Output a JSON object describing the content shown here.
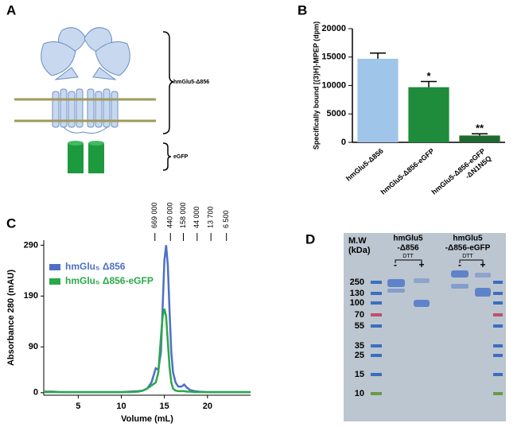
{
  "panel_labels": [
    "A",
    "B",
    "C",
    "D"
  ],
  "diagram": {
    "construct_label": "hmGlu5-Δ856",
    "tag_label": "eGFP"
  },
  "chart_data": [
    {
      "type": "bar",
      "y_label": "Specifically bound [(3)H]-MPEP (dpm)",
      "categories": [
        [
          "hmGlu5-Δ856"
        ],
        [
          "hmGlu5-Δ856-eGFP"
        ],
        [
          "hmGlu5-Δ856-eGFP",
          "-ΔN1N5Q"
        ]
      ],
      "values": [
        14700,
        9700,
        1200
      ],
      "errors": [
        1000,
        1000,
        300
      ],
      "colors": [
        "#9fc5e8",
        "#1e8c3a",
        "#1f6a30"
      ],
      "annotations": [
        null,
        "*",
        "**"
      ],
      "ylim": [
        0,
        20000
      ],
      "yticks": [
        0,
        5000,
        10000,
        15000,
        20000
      ]
    },
    {
      "type": "line",
      "x_label": "Volume (mL)",
      "y_label": "Absorbance 280 (mAU)",
      "x": [
        1,
        2,
        3,
        4,
        5,
        6,
        7,
        8,
        9,
        10,
        11,
        12,
        12.5,
        13,
        13.5,
        14,
        14.3,
        14.6,
        14.8,
        15,
        15.2,
        15.4,
        15.6,
        15.8,
        16,
        16.3,
        16.6,
        17,
        17.3,
        17.6,
        18,
        18.5,
        19,
        20,
        21,
        22,
        23,
        24,
        25
      ],
      "series": [
        {
          "name": "hmGlu₅ Δ856",
          "color": "#4f6fc4",
          "values": [
            2,
            2,
            1,
            1,
            1,
            1,
            1,
            1,
            1,
            1,
            2,
            3,
            4,
            8,
            20,
            48,
            45,
            80,
            170,
            260,
            290,
            250,
            160,
            80,
            40,
            20,
            12,
            12,
            16,
            10,
            5,
            3,
            2,
            1,
            1,
            1,
            1,
            1,
            1
          ]
        },
        {
          "name": "hmGlu₅ Δ856-eGFP",
          "color": "#2aa84a",
          "values": [
            1,
            1,
            1,
            1,
            1,
            1,
            1,
            1,
            1,
            1,
            1,
            2,
            4,
            8,
            14,
            20,
            40,
            110,
            150,
            165,
            150,
            100,
            50,
            20,
            8,
            4,
            3,
            3,
            3,
            2,
            2,
            1,
            1,
            1,
            1,
            1,
            1,
            1,
            1
          ]
        }
      ],
      "xlim": [
        1,
        25
      ],
      "xticks": [
        5,
        10,
        15,
        20
      ],
      "ylim": [
        -5,
        300
      ],
      "yticks": [
        0,
        90,
        190,
        290
      ],
      "size_markers": [
        {
          "value": 13.9,
          "label": "669 000"
        },
        {
          "value": 15.7,
          "label": "440 000"
        },
        {
          "value": 17.2,
          "label": "158 000"
        },
        {
          "value": 18.8,
          "label": "44 000"
        },
        {
          "value": 20.4,
          "label": "13 700"
        },
        {
          "value": 22.2,
          "label": "6 500"
        }
      ]
    }
  ],
  "gel": {
    "mw_label": [
      "M.W",
      "(kDa)"
    ],
    "ladder": [
      250,
      130,
      100,
      70,
      55,
      35,
      25,
      15,
      10
    ],
    "groups": [
      {
        "name": [
          "hmGlu5",
          "-Δ856"
        ],
        "reagent": "DTT",
        "lanes": [
          "-",
          "+"
        ]
      },
      {
        "name": [
          "hmGlu5",
          "-Δ856-eGFP"
        ],
        "reagent": "DTT",
        "lanes": [
          "-",
          "+"
        ]
      }
    ]
  }
}
